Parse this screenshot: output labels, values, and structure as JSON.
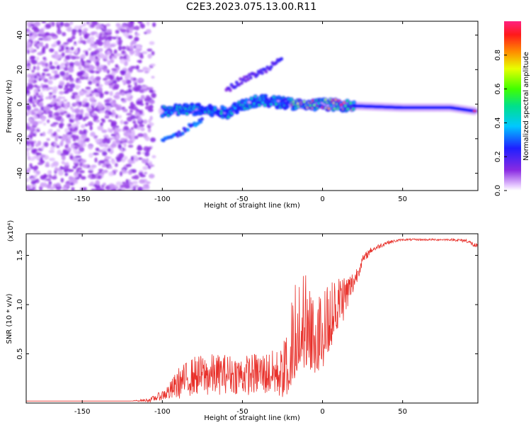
{
  "title": "C2E3.2023.075.13.00.R11",
  "colors": {
    "snr_line": "#e8302a",
    "axis": "#000000"
  },
  "chart_data": [
    {
      "type": "heatmap",
      "xlabel": "Height of straight line (km)",
      "ylabel": "Frequency (Hz)",
      "xlim": [
        -185,
        97
      ],
      "ylim": [
        -50,
        48
      ],
      "x_ticks": [
        -150,
        -100,
        -50,
        0,
        50
      ],
      "y_ticks": [
        -40,
        -20,
        0,
        20,
        40
      ],
      "colorbar": {
        "label": "Normalized spectral amplitude",
        "range": [
          0.0,
          1.0
        ],
        "ticks": [
          "0.0",
          "0.2",
          "0.4",
          "0.6",
          "0.8"
        ],
        "colormap": "rainbow (purple-blue-cyan-green-yellow-red-magenta)"
      },
      "features": [
        {
          "region": "noise",
          "x_range": [
            -185,
            -105
          ],
          "y_range": [
            -50,
            48
          ],
          "amplitude": 0.1
        },
        {
          "region": "signal_track",
          "points": [
            [
              -100,
              -4
            ],
            [
              -80,
              -3
            ],
            [
              -60,
              -5
            ],
            [
              -50,
              0
            ],
            [
              -40,
              2
            ],
            [
              -25,
              1
            ],
            [
              -10,
              -1
            ],
            [
              0,
              0
            ],
            [
              20,
              -1
            ],
            [
              50,
              -2
            ],
            [
              80,
              -2
            ],
            [
              95,
              -4
            ]
          ],
          "amplitude_range": [
            0.2,
            1.0
          ]
        },
        {
          "region": "upper_branch",
          "points": [
            [
              -60,
              8
            ],
            [
              -50,
              14
            ],
            [
              -35,
              20
            ],
            [
              -25,
              28
            ]
          ],
          "amplitude": 0.2
        },
        {
          "region": "lower_branch",
          "points": [
            [
              -100,
              -20
            ],
            [
              -90,
              -18
            ],
            [
              -85,
              -14
            ],
            [
              -75,
              -10
            ]
          ],
          "amplitude": 0.3
        }
      ]
    },
    {
      "type": "line",
      "xlabel": "Height of straight line (km)",
      "ylabel": "SNR (10 * v/v)",
      "y_multiplier": "(x10⁴)",
      "xlim": [
        -185,
        97
      ],
      "ylim": [
        0,
        1.72
      ],
      "x_ticks": [
        -150,
        -100,
        -50,
        0,
        50
      ],
      "y_ticks": [
        "0.5",
        "1.0",
        "1.5"
      ],
      "series": [
        {
          "x": [
            -185,
            -150,
            -120,
            -108,
            -100,
            -95,
            -90,
            -80,
            -70,
            -60,
            -50,
            -40,
            -30,
            -25,
            -20,
            -15,
            -10,
            -5,
            0,
            5,
            10,
            15,
            20,
            25,
            30,
            40,
            50,
            60,
            70,
            80,
            90,
            97
          ],
          "y": [
            0.02,
            0.02,
            0.02,
            0.03,
            0.08,
            0.12,
            0.2,
            0.28,
            0.28,
            0.3,
            0.28,
            0.3,
            0.3,
            0.3,
            0.55,
            0.9,
            0.85,
            0.7,
            0.75,
            0.9,
            1.05,
            1.1,
            1.25,
            1.45,
            1.55,
            1.63,
            1.66,
            1.66,
            1.66,
            1.66,
            1.65,
            1.58
          ],
          "noise": [
            0.0,
            0.0,
            0.0,
            0.02,
            0.05,
            0.1,
            0.16,
            0.2,
            0.22,
            0.2,
            0.2,
            0.22,
            0.24,
            0.26,
            0.45,
            0.55,
            0.5,
            0.4,
            0.4,
            0.35,
            0.3,
            0.22,
            0.1,
            0.05,
            0.03,
            0.02,
            0.01,
            0.01,
            0.01,
            0.01,
            0.02,
            0.03
          ]
        }
      ]
    }
  ]
}
